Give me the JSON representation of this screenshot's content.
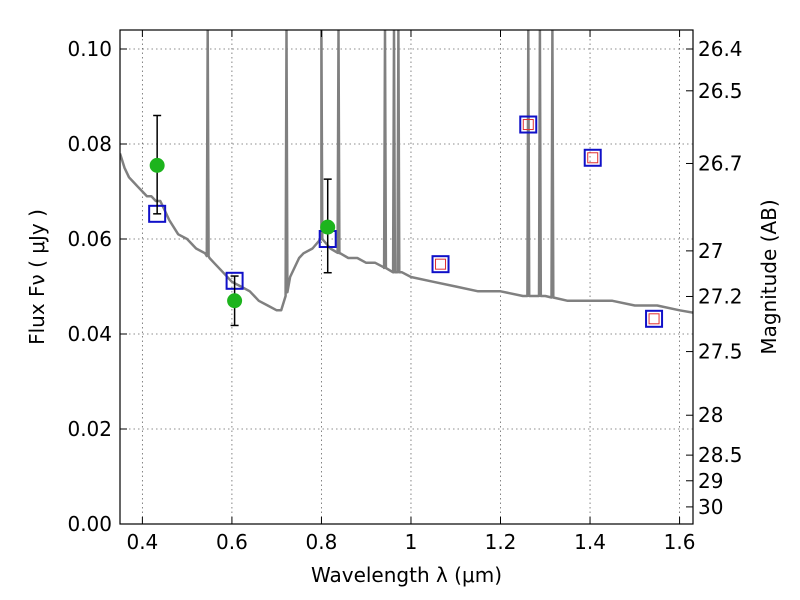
{
  "chart_data": {
    "type": "scatter",
    "xlabel": "Wavelength  λ (μm)",
    "ylabel": "Flux  Fν  ( μJy )",
    "ylabel_right": "Magnitude (AB)",
    "xlim": [
      0.35,
      1.63
    ],
    "ylim": [
      0.0,
      0.104
    ],
    "grid": true,
    "x_ticks": [
      0.4,
      0.6,
      0.8,
      1.0,
      1.2,
      1.4,
      1.6
    ],
    "x_tick_labels": [
      "0.4",
      "0.6",
      "0.8",
      "1",
      "1.2",
      "1.4",
      "1.6"
    ],
    "y_ticks": [
      0.0,
      0.02,
      0.04,
      0.06,
      0.08,
      0.1
    ],
    "y_tick_labels": [
      "0.00",
      "0.02",
      "0.04",
      "0.06",
      "0.08",
      "0.10"
    ],
    "right_ticks": [
      {
        "label": "26.4",
        "flux": 0.1
      },
      {
        "label": "26.5",
        "flux": 0.0912
      },
      {
        "label": "26.7",
        "flux": 0.0759
      },
      {
        "label": "27",
        "flux": 0.0575
      },
      {
        "label": "27.2",
        "flux": 0.0479
      },
      {
        "label": "27.5",
        "flux": 0.0363
      },
      {
        "label": "28",
        "flux": 0.0229
      },
      {
        "label": "28.5",
        "flux": 0.0145
      },
      {
        "label": "29",
        "flux": 0.0091
      },
      {
        "label": "30",
        "flux": 0.0036
      }
    ],
    "colors": {
      "model": "#808080",
      "observed": "#1db41d",
      "model_box": "#1010c8",
      "inner_box": "#e03030",
      "errorbar": "#000000"
    },
    "model_spectrum": {
      "x": [
        0.35,
        0.36,
        0.37,
        0.38,
        0.39,
        0.4,
        0.41,
        0.42,
        0.43,
        0.44,
        0.45,
        0.46,
        0.48,
        0.5,
        0.52,
        0.54,
        0.55,
        0.56,
        0.58,
        0.6,
        0.62,
        0.64,
        0.66,
        0.68,
        0.7,
        0.71,
        0.72,
        0.73,
        0.74,
        0.75,
        0.76,
        0.78,
        0.8,
        0.82,
        0.84,
        0.86,
        0.88,
        0.9,
        0.92,
        0.94,
        0.96,
        0.98,
        1.0,
        1.05,
        1.1,
        1.15,
        1.2,
        1.25,
        1.3,
        1.35,
        1.4,
        1.45,
        1.5,
        1.55,
        1.6,
        1.63
      ],
      "y": [
        0.078,
        0.075,
        0.073,
        0.072,
        0.071,
        0.07,
        0.069,
        0.069,
        0.068,
        0.068,
        0.066,
        0.064,
        0.061,
        0.06,
        0.058,
        0.057,
        0.056,
        0.055,
        0.053,
        0.051,
        0.05,
        0.049,
        0.047,
        0.046,
        0.045,
        0.045,
        0.048,
        0.052,
        0.054,
        0.056,
        0.057,
        0.058,
        0.06,
        0.058,
        0.057,
        0.056,
        0.056,
        0.055,
        0.055,
        0.054,
        0.053,
        0.053,
        0.052,
        0.051,
        0.05,
        0.049,
        0.049,
        0.048,
        0.048,
        0.047,
        0.047,
        0.047,
        0.046,
        0.046,
        0.045,
        0.0445
      ],
      "spikes": [
        {
          "x": 0.546,
          "y": 0.104
        },
        {
          "x": 0.722,
          "y": 0.104
        },
        {
          "x": 0.8,
          "y": 0.104
        },
        {
          "x": 0.838,
          "y": 0.104
        },
        {
          "x": 0.942,
          "y": 0.104
        },
        {
          "x": 0.962,
          "y": 0.104
        },
        {
          "x": 0.972,
          "y": 0.104
        },
        {
          "x": 1.262,
          "y": 0.104
        },
        {
          "x": 1.288,
          "y": 0.104
        },
        {
          "x": 1.316,
          "y": 0.104
        }
      ]
    },
    "observed_points": [
      {
        "x": 0.433,
        "y": 0.0755,
        "yerr_low": 0.0653,
        "yerr_high": 0.086
      },
      {
        "x": 0.606,
        "y": 0.047,
        "yerr_low": 0.0418,
        "yerr_high": 0.0522
      },
      {
        "x": 0.814,
        "y": 0.0625,
        "yerr_low": 0.0529,
        "yerr_high": 0.0726
      }
    ],
    "model_boxes": [
      {
        "x": 0.433,
        "y": 0.0653,
        "inner": false
      },
      {
        "x": 0.606,
        "y": 0.0512,
        "inner": false
      },
      {
        "x": 0.814,
        "y": 0.06,
        "inner": false
      },
      {
        "x": 1.066,
        "y": 0.0547,
        "inner": true
      },
      {
        "x": 1.262,
        "y": 0.0841,
        "inner": true
      },
      {
        "x": 1.406,
        "y": 0.0771,
        "inner": true
      },
      {
        "x": 1.543,
        "y": 0.0432,
        "inner": true
      }
    ]
  }
}
